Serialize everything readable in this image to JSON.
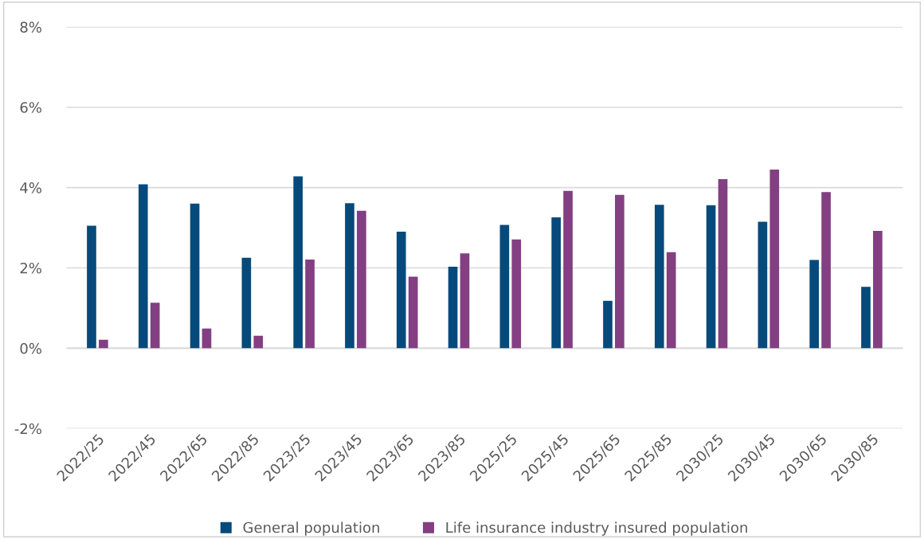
{
  "chart_data": {
    "type": "bar",
    "categories": [
      "2022/25",
      "2022/45",
      "2022/65",
      "2022/85",
      "2023/25",
      "2023/45",
      "2023/65",
      "2023/85",
      "2025/25",
      "2025/45",
      "2025/65",
      "2025/85",
      "2030/25",
      "2030/45",
      "2030/65",
      "2030/85"
    ],
    "series": [
      {
        "name": "General population",
        "color": "#064a7b",
        "values": [
          3.05,
          4.08,
          3.6,
          2.25,
          4.28,
          3.61,
          2.9,
          2.03,
          3.07,
          3.26,
          1.18,
          3.57,
          3.56,
          3.15,
          2.2,
          1.53
        ]
      },
      {
        "name": "Life insurance industry insured population",
        "color": "#833f82",
        "values": [
          0.21,
          1.13,
          0.49,
          0.31,
          2.21,
          3.42,
          1.78,
          2.36,
          2.71,
          3.92,
          3.82,
          2.39,
          4.21,
          4.45,
          3.89,
          2.92
        ]
      }
    ],
    "ylim": [
      -2,
      8
    ],
    "yticks": [
      {
        "value": -2,
        "label": "-2%"
      },
      {
        "value": 0,
        "label": "0%"
      },
      {
        "value": 2,
        "label": "2%"
      },
      {
        "value": 4,
        "label": "4%"
      },
      {
        "value": 6,
        "label": "6%"
      },
      {
        "value": 8,
        "label": "8%"
      }
    ],
    "grid": "y",
    "legend": "bottom"
  }
}
